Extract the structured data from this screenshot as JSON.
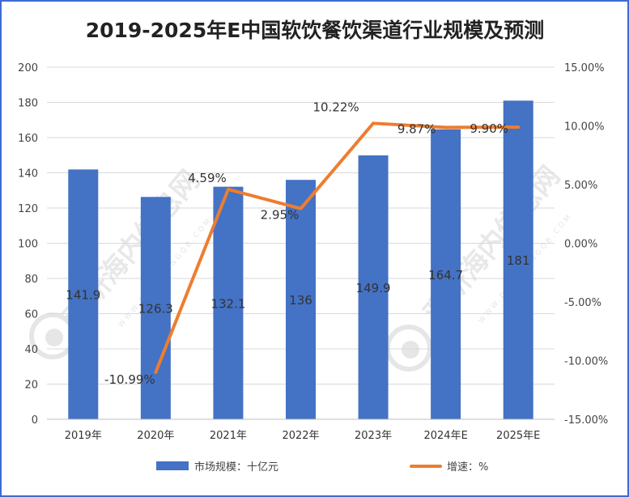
{
  "chart_data": {
    "type": "bar+line",
    "title": "2019-2025年E中国软饮餐饮渠道行业规模及预测",
    "categories": [
      "2019年",
      "2020年",
      "2021年",
      "2022年",
      "2023年",
      "2024年E",
      "2025年E"
    ],
    "series": [
      {
        "name": "市场规模：十亿元",
        "type": "bar",
        "axis": "left",
        "color": "#4472c4",
        "values": [
          141.9,
          126.3,
          132.1,
          136,
          149.9,
          164.7,
          181
        ],
        "labels": [
          "141.9",
          "126.3",
          "132.1",
          "136",
          "149.9",
          "164.7",
          "181"
        ]
      },
      {
        "name": "增速：%",
        "type": "line",
        "axis": "right",
        "color": "#ed7d31",
        "values": [
          null,
          -10.99,
          4.59,
          2.95,
          10.22,
          9.87,
          9.9
        ],
        "labels": [
          "",
          "-10.99%",
          "4.59%",
          "2.95%",
          "10.22%",
          "9.87%",
          "9.90%"
        ]
      }
    ],
    "y_left": {
      "min": 0,
      "max": 200,
      "step": 20,
      "tick_labels": [
        "0",
        "20",
        "40",
        "60",
        "80",
        "100",
        "120",
        "140",
        "160",
        "180",
        "200"
      ]
    },
    "y_right": {
      "min": -15,
      "max": 15,
      "step": 5,
      "tick_labels": [
        "-15.00%",
        "-10.00%",
        "-5.00%",
        "0.00%",
        "5.00%",
        "10.00%",
        "15.00%"
      ]
    },
    "grid": true,
    "legend_position": "bottom"
  },
  "watermark": {
    "text": "观研海内信息网",
    "subtext": "WWW.DONGGANGQB.COM"
  }
}
